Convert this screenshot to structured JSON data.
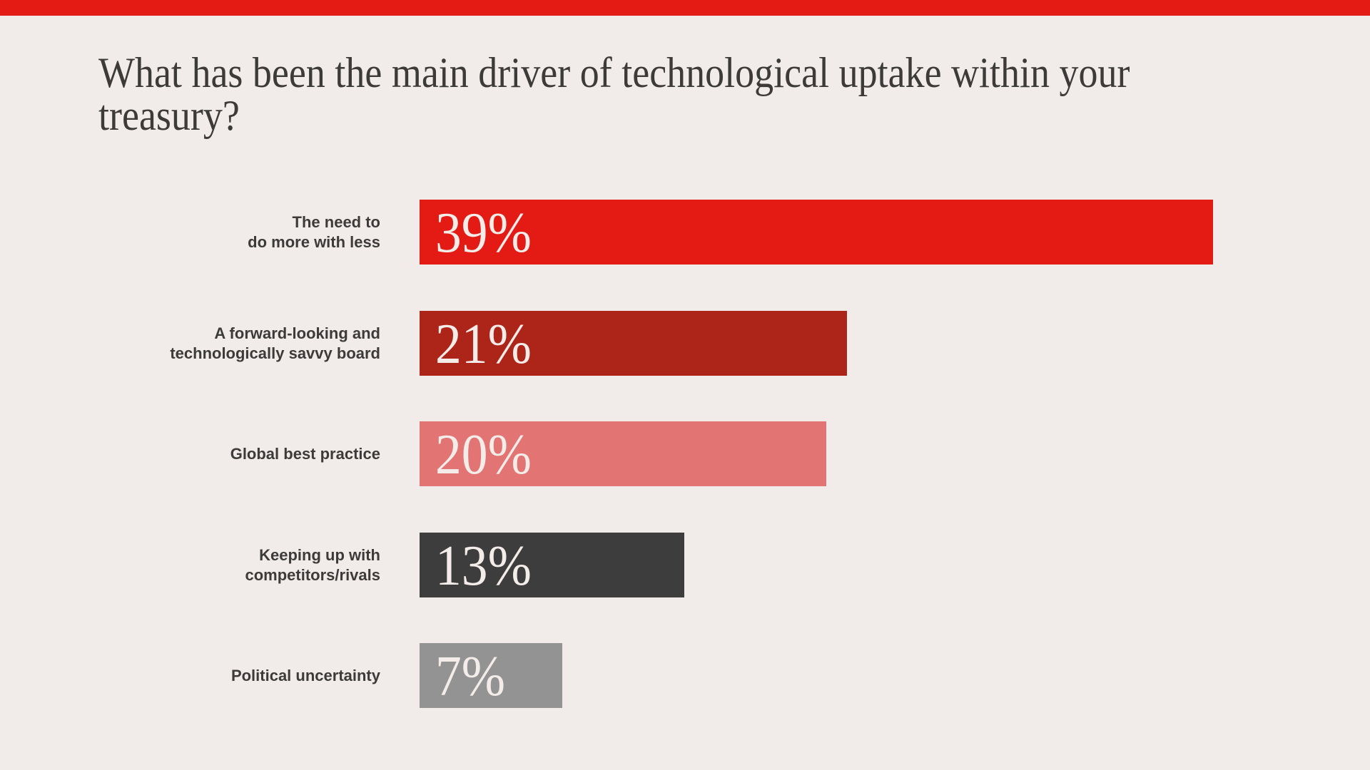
{
  "chart_data": {
    "type": "bar",
    "orientation": "horizontal",
    "title": "What has been the main driver of technological uptake within your treasury?",
    "categories": [
      "The need to\ndo more with less",
      "A forward-looking and\ntechnologically savvy board",
      "Global best practice",
      "Keeping up with\ncompetitors/rivals",
      "Political uncertainty"
    ],
    "values": [
      39,
      21,
      20,
      13,
      7
    ],
    "value_labels": [
      "39%",
      "21%",
      "20%",
      "13%",
      "7%"
    ],
    "colors": [
      "#e31b14",
      "#ad2418",
      "#e27573",
      "#3d3d3d",
      "#939393"
    ],
    "xlim": [
      0,
      39
    ],
    "xlabel": "",
    "ylabel": "",
    "grid": false
  }
}
